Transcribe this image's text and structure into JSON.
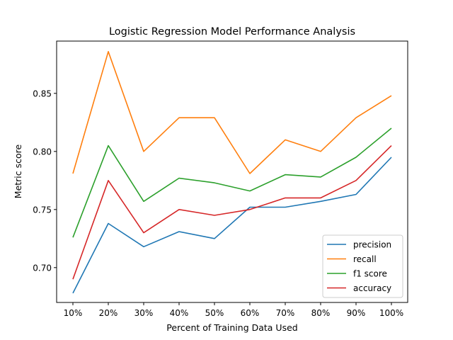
{
  "chart_data": {
    "type": "line",
    "title": "Logistic Regression Model Performance Analysis",
    "xlabel": "Percent of Training Data Used",
    "ylabel": "Metric score",
    "categories": [
      "10%",
      "20%",
      "30%",
      "40%",
      "50%",
      "60%",
      "70%",
      "80%",
      "90%",
      "100%"
    ],
    "ylim": [
      0.67,
      0.895
    ],
    "yticks": [
      0.7,
      0.75,
      0.8,
      0.85
    ],
    "ytick_labels": [
      "0.70",
      "0.75",
      "0.80",
      "0.85"
    ],
    "grid": false,
    "legend_position": "lower-right",
    "series": [
      {
        "name": "precision",
        "color": "#1f77b4",
        "values": [
          0.678,
          0.738,
          0.718,
          0.731,
          0.725,
          0.752,
          0.752,
          0.757,
          0.763,
          0.795
        ]
      },
      {
        "name": "recall",
        "color": "#ff7f0e",
        "values": [
          0.781,
          0.886,
          0.8,
          0.829,
          0.829,
          0.781,
          0.81,
          0.8,
          0.829,
          0.848
        ]
      },
      {
        "name": "f1 score",
        "color": "#2ca02c",
        "values": [
          0.726,
          0.805,
          0.757,
          0.777,
          0.773,
          0.766,
          0.78,
          0.778,
          0.795,
          0.82
        ]
      },
      {
        "name": "accuracy",
        "color": "#d62728",
        "values": [
          0.69,
          0.775,
          0.73,
          0.75,
          0.745,
          0.75,
          0.76,
          0.76,
          0.775,
          0.805
        ]
      }
    ]
  }
}
